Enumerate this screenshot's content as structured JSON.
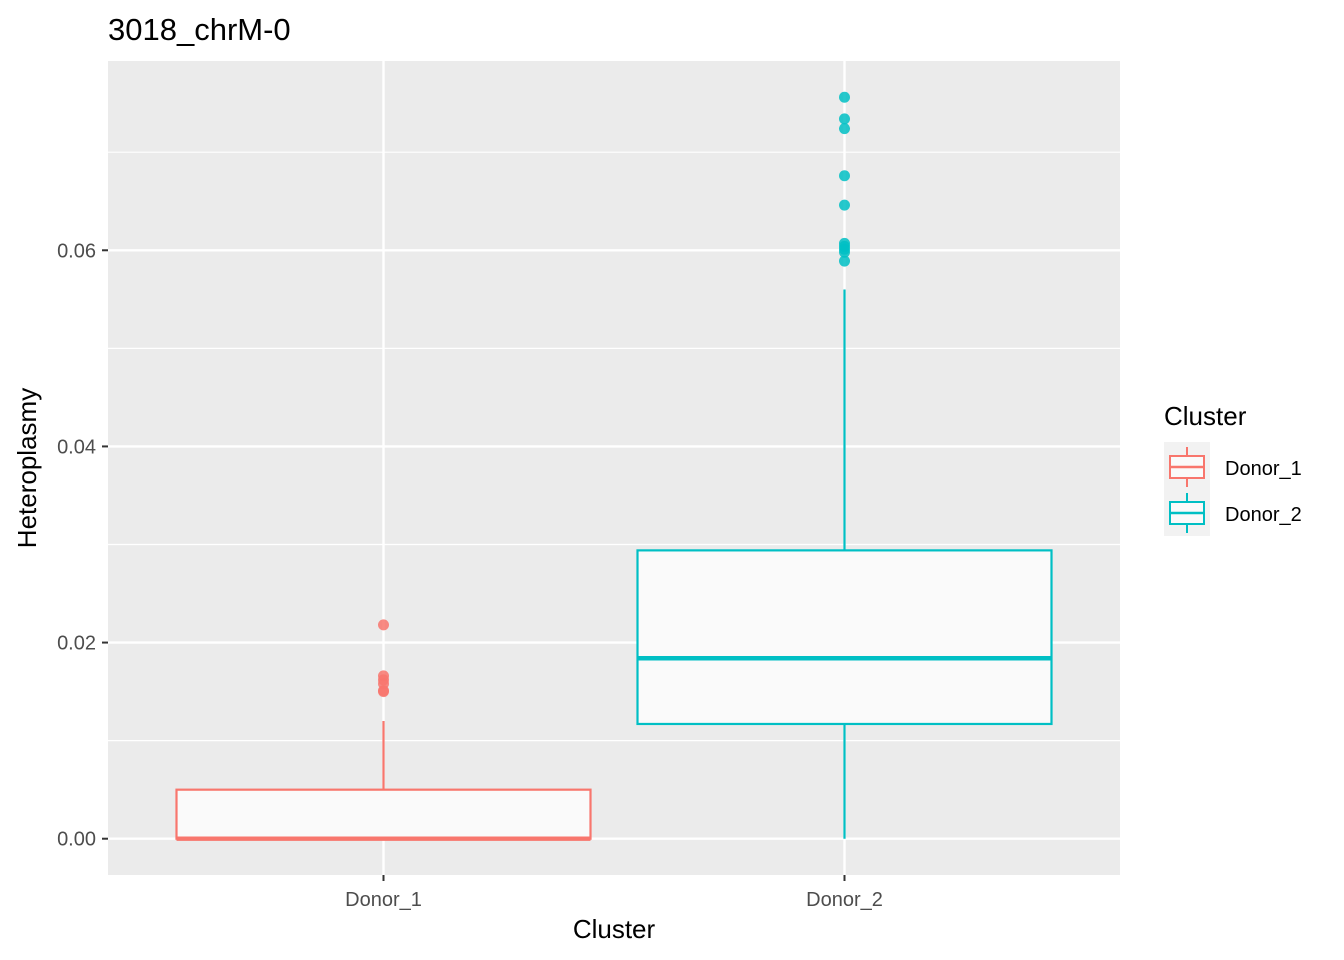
{
  "chart_data": {
    "type": "boxplot",
    "title": "3018_chrM-0",
    "xlabel": "Cluster",
    "ylabel": "Heteroplasmy",
    "categories": [
      "Donor_1",
      "Donor_2"
    ],
    "ylim": [
      -0.0037,
      0.0793
    ],
    "yticks": [
      0.0,
      0.02,
      0.04,
      0.06
    ],
    "ytick_labels": [
      "0.00",
      "0.02",
      "0.04",
      "0.06"
    ],
    "grid": true,
    "legend": {
      "title": "Cluster",
      "placement": "right",
      "entries": [
        "Donor_1",
        "Donor_2"
      ]
    },
    "series": [
      {
        "name": "Donor_1",
        "color": "#F8766D",
        "q1": 0.0,
        "median": 0.0,
        "q3": 0.005,
        "whisker_low": 0.0,
        "whisker_high": 0.012,
        "outliers": [
          0.0218,
          0.0166,
          0.0162,
          0.0158,
          0.0151,
          0.015
        ]
      },
      {
        "name": "Donor_2",
        "color": "#00BFC4",
        "q1": 0.0117,
        "median": 0.0184,
        "q3": 0.0294,
        "whisker_low": 0.0,
        "whisker_high": 0.056,
        "outliers": [
          0.0756,
          0.0734,
          0.0724,
          0.0676,
          0.0646,
          0.0607,
          0.0604,
          0.0601,
          0.0598,
          0.0589
        ]
      }
    ]
  }
}
